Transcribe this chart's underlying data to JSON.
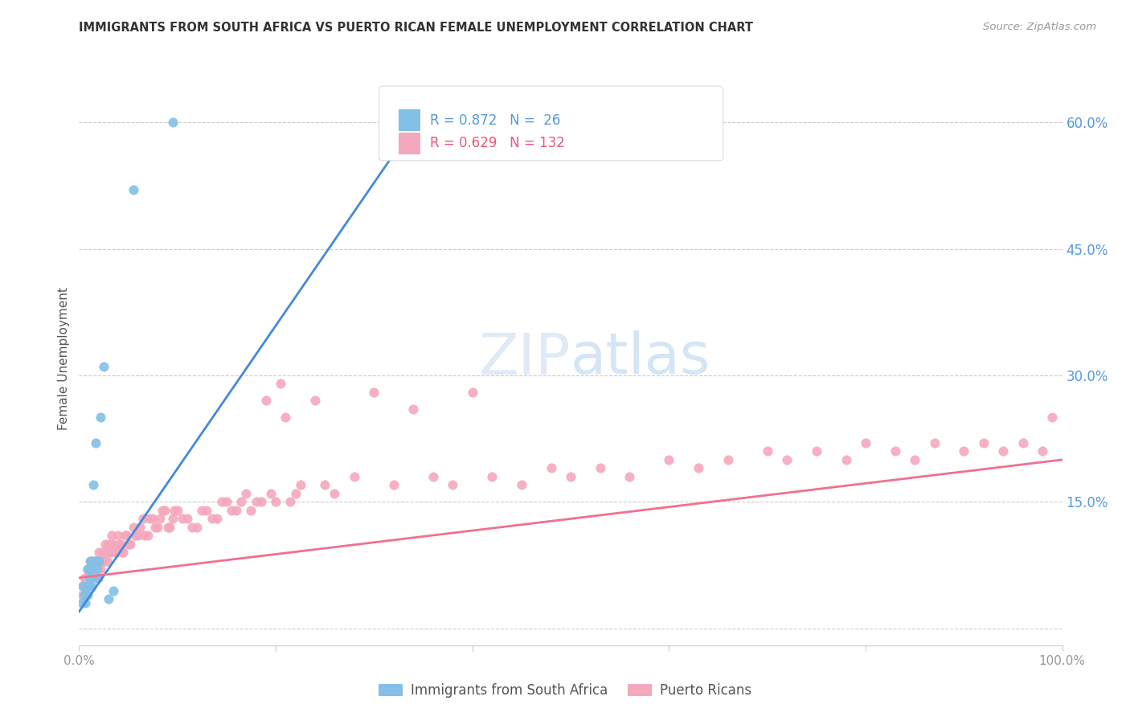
{
  "title": "IMMIGRANTS FROM SOUTH AFRICA VS PUERTO RICAN FEMALE UNEMPLOYMENT CORRELATION CHART",
  "source": "Source: ZipAtlas.com",
  "ylabel": "Female Unemployment",
  "blue_color": "#82c0e8",
  "pink_color": "#f5a8bc",
  "line_blue": "#4488dd",
  "line_pink": "#f07090",
  "xlim": [
    0.0,
    1.0
  ],
  "ylim": [
    -0.02,
    0.66
  ],
  "yticks": [
    0.0,
    0.15,
    0.3,
    0.45,
    0.6
  ],
  "ytick_labels": [
    "",
    "15.0%",
    "30.0%",
    "45.0%",
    "60.0%"
  ],
  "blue_line_x": [
    0.0,
    0.36
  ],
  "blue_line_y": [
    0.02,
    0.63
  ],
  "pink_line_x": [
    0.0,
    1.0
  ],
  "pink_line_y": [
    0.06,
    0.2
  ],
  "blue_scatter_x": [
    0.003,
    0.004,
    0.005,
    0.006,
    0.007,
    0.008,
    0.009,
    0.009,
    0.01,
    0.011,
    0.011,
    0.012,
    0.012,
    0.013,
    0.014,
    0.016,
    0.017,
    0.018,
    0.019,
    0.02,
    0.022,
    0.025,
    0.03,
    0.035,
    0.055,
    0.095
  ],
  "blue_scatter_y": [
    0.03,
    0.05,
    0.04,
    0.03,
    0.04,
    0.05,
    0.04,
    0.07,
    0.05,
    0.06,
    0.08,
    0.06,
    0.07,
    0.05,
    0.17,
    0.08,
    0.22,
    0.07,
    0.06,
    0.08,
    0.25,
    0.31,
    0.035,
    0.045,
    0.52,
    0.6
  ],
  "pink_scatter_x": [
    0.003,
    0.004,
    0.005,
    0.005,
    0.006,
    0.007,
    0.008,
    0.009,
    0.01,
    0.011,
    0.012,
    0.012,
    0.013,
    0.014,
    0.015,
    0.016,
    0.017,
    0.018,
    0.019,
    0.02,
    0.021,
    0.022,
    0.023,
    0.024,
    0.025,
    0.026,
    0.027,
    0.028,
    0.03,
    0.032,
    0.033,
    0.035,
    0.037,
    0.04,
    0.042,
    0.045,
    0.048,
    0.05,
    0.055,
    0.06,
    0.065,
    0.07,
    0.075,
    0.08,
    0.085,
    0.09,
    0.095,
    0.1,
    0.11,
    0.12,
    0.13,
    0.14,
    0.15,
    0.16,
    0.17,
    0.18,
    0.19,
    0.2,
    0.21,
    0.22,
    0.24,
    0.25,
    0.26,
    0.28,
    0.3,
    0.32,
    0.34,
    0.36,
    0.38,
    0.4,
    0.42,
    0.45,
    0.48,
    0.5,
    0.53,
    0.56,
    0.6,
    0.63,
    0.66,
    0.7,
    0.72,
    0.75,
    0.78,
    0.8,
    0.83,
    0.85,
    0.87,
    0.9,
    0.92,
    0.94,
    0.96,
    0.98,
    0.99,
    0.004,
    0.006,
    0.008,
    0.01,
    0.013,
    0.015,
    0.018,
    0.02,
    0.023,
    0.025,
    0.028,
    0.031,
    0.034,
    0.038,
    0.041,
    0.044,
    0.047,
    0.052,
    0.057,
    0.062,
    0.067,
    0.072,
    0.077,
    0.082,
    0.087,
    0.092,
    0.097,
    0.105,
    0.115,
    0.125,
    0.135,
    0.145,
    0.155,
    0.165,
    0.175,
    0.185,
    0.195,
    0.205,
    0.215,
    0.225
  ],
  "pink_scatter_y": [
    0.04,
    0.05,
    0.04,
    0.06,
    0.05,
    0.06,
    0.05,
    0.07,
    0.06,
    0.07,
    0.06,
    0.08,
    0.07,
    0.08,
    0.07,
    0.08,
    0.07,
    0.06,
    0.08,
    0.09,
    0.08,
    0.07,
    0.09,
    0.08,
    0.09,
    0.08,
    0.1,
    0.09,
    0.1,
    0.09,
    0.11,
    0.1,
    0.09,
    0.11,
    0.1,
    0.09,
    0.11,
    0.1,
    0.12,
    0.11,
    0.13,
    0.11,
    0.13,
    0.12,
    0.14,
    0.12,
    0.13,
    0.14,
    0.13,
    0.12,
    0.14,
    0.13,
    0.15,
    0.14,
    0.16,
    0.15,
    0.27,
    0.15,
    0.25,
    0.16,
    0.27,
    0.17,
    0.16,
    0.18,
    0.28,
    0.17,
    0.26,
    0.18,
    0.17,
    0.28,
    0.18,
    0.17,
    0.19,
    0.18,
    0.19,
    0.18,
    0.2,
    0.19,
    0.2,
    0.21,
    0.2,
    0.21,
    0.2,
    0.22,
    0.21,
    0.2,
    0.22,
    0.21,
    0.22,
    0.21,
    0.22,
    0.21,
    0.25,
    0.05,
    0.04,
    0.06,
    0.07,
    0.06,
    0.07,
    0.08,
    0.07,
    0.08,
    0.09,
    0.08,
    0.09,
    0.1,
    0.09,
    0.1,
    0.09,
    0.11,
    0.1,
    0.11,
    0.12,
    0.11,
    0.13,
    0.12,
    0.13,
    0.14,
    0.12,
    0.14,
    0.13,
    0.12,
    0.14,
    0.13,
    0.15,
    0.14,
    0.15,
    0.14,
    0.15,
    0.16,
    0.29,
    0.15,
    0.17
  ]
}
